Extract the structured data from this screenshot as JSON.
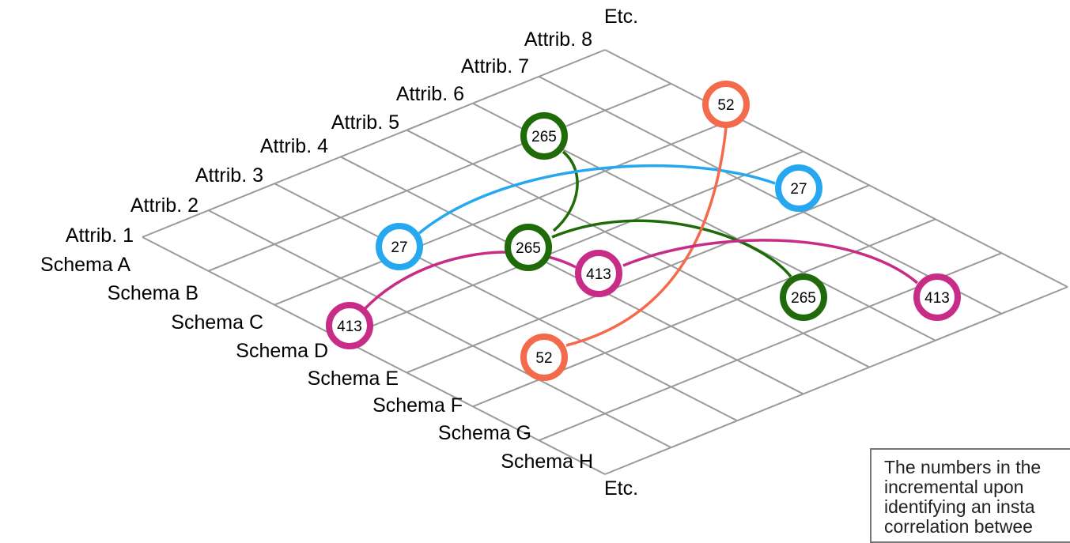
{
  "attributes": [
    "Attrib. 1",
    "Attrib. 2",
    "Attrib. 3",
    "Attrib. 4",
    "Attrib. 5",
    "Attrib. 6",
    "Attrib. 7",
    "Attrib. 8"
  ],
  "schemas": [
    "Schema A",
    "Schema B",
    "Schema C",
    "Schema D",
    "Schema E",
    "Schema F",
    "Schema G",
    "Schema H"
  ],
  "attr_etc": "Etc.",
  "schema_etc": "Etc.",
  "nodes": [
    {
      "id": "n265a",
      "label": "265",
      "color": "#1f6b0a"
    },
    {
      "id": "n265b",
      "label": "265",
      "color": "#1f6b0a"
    },
    {
      "id": "n265c",
      "label": "265",
      "color": "#1f6b0a"
    },
    {
      "id": "n52a",
      "label": "52",
      "color": "#f46a4c"
    },
    {
      "id": "n52b",
      "label": "52",
      "color": "#f46a4c"
    },
    {
      "id": "n27a",
      "label": "27",
      "color": "#26a8f0"
    },
    {
      "id": "n27b",
      "label": "27",
      "color": "#26a8f0"
    },
    {
      "id": "n413a",
      "label": "413",
      "color": "#c72c86"
    },
    {
      "id": "n413b",
      "label": "413",
      "color": "#c72c86"
    },
    {
      "id": "n413c",
      "label": "413",
      "color": "#c72c86"
    }
  ],
  "links": [
    {
      "from": "n265a",
      "to": "n265b",
      "color": "#1f6b0a"
    },
    {
      "from": "n265b",
      "to": "n265c",
      "color": "#1f6b0a"
    },
    {
      "from": "n27a",
      "to": "n27b",
      "color": "#26a8f0"
    },
    {
      "from": "n52a",
      "to": "n52b",
      "color": "#f46a4c"
    },
    {
      "from": "n413a",
      "to": "n413b",
      "color": "#c72c86"
    },
    {
      "from": "n413b",
      "to": "n413c",
      "color": "#c72c86"
    }
  ],
  "note": {
    "lines": [
      "The numbers in the",
      "incremental upon",
      "identifying an insta",
      "correlation betwee"
    ]
  }
}
